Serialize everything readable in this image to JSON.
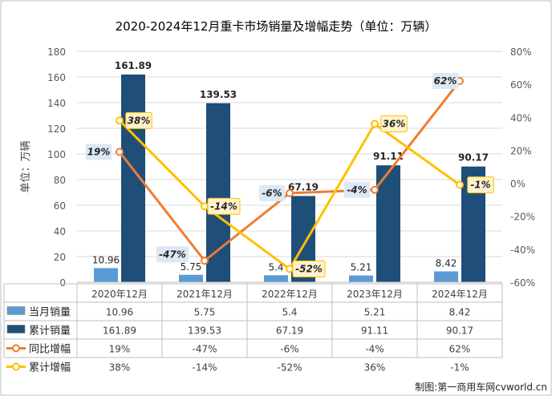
{
  "chart_data": {
    "type": "bar",
    "title": "2020-2024年12月重卡市场销量及增幅走势（单位：万辆）",
    "ylabel": "单位：万辆",
    "ylim": [
      0,
      180
    ],
    "yticks": [
      0,
      20,
      40,
      60,
      80,
      100,
      120,
      140,
      160,
      180
    ],
    "y2lim": [
      -60,
      80
    ],
    "y2ticks": [
      "-60%",
      "-40%",
      "-20%",
      "0%",
      "20%",
      "40%",
      "60%",
      "80%"
    ],
    "categories": [
      "2020年12月",
      "2021年12月",
      "2022年12月",
      "2023年12月",
      "2024年12月"
    ],
    "series": [
      {
        "name": "当月销量",
        "kind": "bar",
        "axis": "left",
        "color": "#5B9BD5",
        "values": [
          10.96,
          5.75,
          5.4,
          5.21,
          8.42
        ],
        "labels": [
          "10.96",
          "5.75",
          "5.4",
          "5.21",
          "8.42"
        ]
      },
      {
        "name": "累计销量",
        "kind": "bar",
        "axis": "left",
        "color": "#1F4E79",
        "values": [
          161.89,
          139.53,
          67.19,
          91.11,
          90.17
        ],
        "labels": [
          "161.89",
          "139.53",
          "67.19",
          "91.11",
          "90.17"
        ]
      },
      {
        "name": "同比增幅",
        "kind": "line",
        "axis": "right",
        "color": "#ED7D31",
        "values": [
          19,
          -47,
          -6,
          -4,
          62
        ],
        "labels": [
          "19%",
          "-47%",
          "-6%",
          "-4%",
          "62%"
        ]
      },
      {
        "name": "累计增幅",
        "kind": "line",
        "axis": "right",
        "color": "#FFC000",
        "values": [
          38,
          -14,
          -52,
          36,
          -1
        ],
        "labels": [
          "38%",
          "-14%",
          "-52%",
          "36%",
          "-1%"
        ]
      }
    ],
    "grid": true,
    "legend": "table-below"
  },
  "source": "制图:第一商用车网cvworld.cn"
}
